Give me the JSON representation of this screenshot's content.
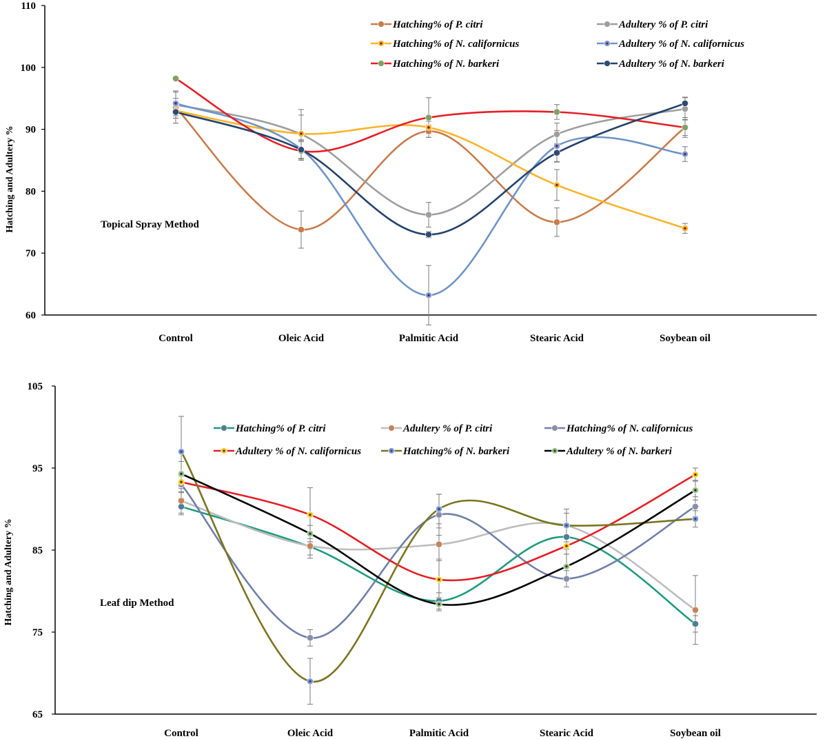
{
  "chart_data": [
    {
      "type": "line",
      "method_label": "Topical Spray Method",
      "ylabel": "Hatching and Adultery %",
      "ylim": [
        60,
        110
      ],
      "yticks": [
        60,
        70,
        80,
        90,
        100,
        110
      ],
      "categories": [
        "Control",
        "Oleic Acid",
        "Palmitic Acid",
        "Stearic Acid",
        "Soybean oil"
      ],
      "series": [
        {
          "name": "Hatching% of P. citri",
          "line_color": "#C97B4B",
          "marker_color": "#C97B4B",
          "marker_center": "#C97B4B",
          "values": [
            93.5,
            73.8,
            89.7,
            75.0,
            90.3
          ],
          "errors": [
            2.5,
            3.0,
            1.0,
            2.3,
            1.6
          ]
        },
        {
          "name": "Adultery % of P. citri",
          "line_color": "#9E9E9E",
          "marker_color": "#9E9E9E",
          "marker_center": "#9E9E9E",
          "values": [
            94.0,
            89.2,
            76.2,
            89.2,
            93.3
          ],
          "errors": [
            2.2,
            4.0,
            2.0,
            1.8,
            1.8
          ]
        },
        {
          "name": "Hatching% of N. californicus",
          "line_color": "#F9B42A",
          "marker_color": "#F9B42A",
          "marker_center": "#7A1A1A",
          "values": [
            93.0,
            89.3,
            90.3,
            81.0,
            74.0
          ],
          "errors": [
            2.0,
            3.0,
            1.0,
            2.5,
            0.8
          ]
        },
        {
          "name": "Adultery % of N. californicus",
          "line_color": "#6F93C6",
          "marker_color": "#7F9BD0",
          "marker_center": "#6A1E5C",
          "values": [
            94.2,
            86.8,
            63.2,
            87.3,
            86.0
          ],
          "errors": [
            2.0,
            1.5,
            4.8,
            2.5,
            1.2
          ]
        },
        {
          "name": "Hatching% of N. barkeri",
          "line_color": "#E41E26",
          "marker_color": "#7FA262",
          "marker_center": "#7FA262",
          "values": [
            98.2,
            86.5,
            91.9,
            92.8,
            90.3
          ],
          "errors": [
            0,
            1.5,
            3.2,
            1.2,
            1.3
          ]
        },
        {
          "name": "Adultery % of N. barkeri",
          "line_color": "#24426B",
          "marker_color": "#2E4A73",
          "marker_center": "#2E4A73",
          "values": [
            92.8,
            86.7,
            73.0,
            86.2,
            94.2
          ],
          "errors": [
            1.0,
            1.5,
            0.5,
            1.5,
            1.0
          ]
        }
      ]
    },
    {
      "type": "line",
      "method_label": "Leaf dip Method",
      "ylabel": "Hatching and Adultery %",
      "ylim": [
        65,
        105
      ],
      "yticks": [
        65,
        75,
        85,
        95,
        105
      ],
      "categories": [
        "Control",
        "Oleic Acid",
        "Palmitic Acid",
        "Stearic Acid",
        "Soybean oil"
      ],
      "series": [
        {
          "name": "Hatching% of P. citri",
          "line_color": "#1E9A7E",
          "marker_color": "#4F7D96",
          "marker_center": "#4F7D96",
          "values": [
            90.3,
            85.4,
            78.8,
            86.6,
            76.0
          ],
          "errors": [
            1.0,
            1.0,
            1.0,
            1.5,
            1.0
          ]
        },
        {
          "name": "Adultery % of P. citri",
          "line_color": "#BDBDBD",
          "marker_color": "#C4845A",
          "marker_center": "#C4845A",
          "values": [
            91.0,
            85.5,
            85.7,
            88.0,
            77.7
          ],
          "errors": [
            1.5,
            1.5,
            2.0,
            1.5,
            4.2
          ]
        },
        {
          "name": "Hatching% of N. californicus",
          "line_color": "#6F7FA8",
          "marker_color": "#8A8FA8",
          "marker_center": "#8A8FA8",
          "values": [
            93.0,
            74.3,
            89.3,
            81.5,
            90.3
          ],
          "errors": [
            1.0,
            1.0,
            2.5,
            1.0,
            1.2
          ]
        },
        {
          "name": "Adultery % of N. californicus",
          "line_color": "#E41E26",
          "marker_color": "#F3D21A",
          "marker_center": "#7A1A1A",
          "values": [
            93.3,
            89.3,
            81.4,
            85.5,
            94.2
          ],
          "errors": [
            1.2,
            3.3,
            2.5,
            1.0,
            0.8
          ]
        },
        {
          "name": "Hatching% of N. barkeri",
          "line_color": "#7A7420",
          "marker_color": "#7F9BD0",
          "marker_center": "#3B3E8E",
          "values": [
            97.0,
            69.0,
            90.0,
            88.0,
            88.8
          ],
          "errors": [
            4.3,
            2.8,
            1.8,
            2.0,
            1.0
          ]
        },
        {
          "name": "Adultery % of N. barkeri",
          "line_color": "#000000",
          "marker_color": "#9AC28A",
          "marker_center": "#1E3A1E",
          "values": [
            94.3,
            87.0,
            78.4,
            83.0,
            92.3
          ],
          "errors": [
            1.5,
            1.0,
            0.8,
            1.5,
            1.2
          ]
        }
      ]
    }
  ]
}
